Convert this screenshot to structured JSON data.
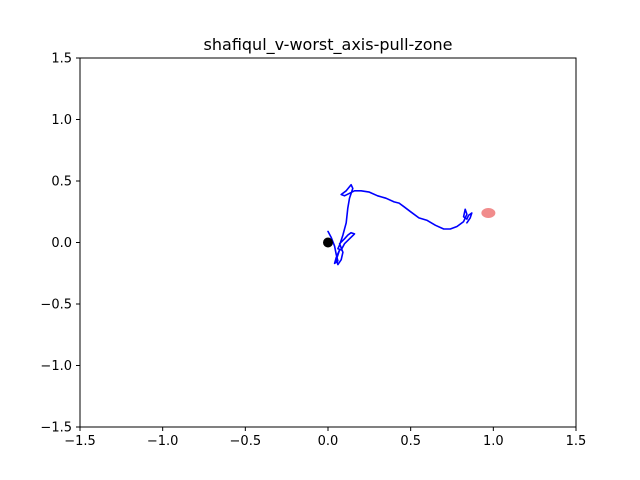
{
  "chart_data": {
    "type": "line",
    "title": "shafiqul_v-worst_axis-pull-zone",
    "xlabel": "",
    "ylabel": "",
    "xlim": [
      -1.5,
      1.5
    ],
    "ylim": [
      -1.5,
      1.5
    ],
    "xticks": [
      -1.5,
      -1.0,
      -0.5,
      0.0,
      0.5,
      1.0,
      1.5
    ],
    "yticks": [
      -1.5,
      -1.0,
      -0.5,
      0.0,
      0.5,
      1.0,
      1.5
    ],
    "xtick_labels": [
      "−1.5",
      "−1.0",
      "−0.5",
      "0.0",
      "0.5",
      "1.0",
      "1.5"
    ],
    "ytick_labels": [
      "−1.5",
      "−1.0",
      "−0.5",
      "0.0",
      "0.5",
      "1.0",
      "1.5"
    ],
    "grid": false,
    "colors": {
      "path": "#0000ff",
      "start": "#000000",
      "goal": "#f08080"
    },
    "series": [
      {
        "x": [
          0.0,
          0.02,
          0.04,
          0.05,
          0.06,
          0.04,
          0.05,
          0.07,
          0.05,
          0.06,
          0.08,
          0.09,
          0.07,
          0.1,
          0.12,
          0.14,
          0.16,
          0.13,
          0.1,
          0.08,
          0.06,
          0.07,
          0.09,
          0.11,
          0.12,
          0.13,
          0.15,
          0.14,
          0.11,
          0.08,
          0.1,
          0.13,
          0.16,
          0.2,
          0.25,
          0.3,
          0.35,
          0.4,
          0.43,
          0.46,
          0.5,
          0.55,
          0.6,
          0.65,
          0.7,
          0.74,
          0.78,
          0.82,
          0.84,
          0.83,
          0.82,
          0.84,
          0.85,
          0.87,
          0.86,
          0.84
        ],
        "y": [
          0.09,
          0.04,
          -0.03,
          -0.1,
          -0.15,
          -0.17,
          -0.12,
          -0.06,
          -0.14,
          -0.18,
          -0.14,
          -0.08,
          -0.01,
          0.03,
          0.06,
          0.08,
          0.07,
          0.03,
          -0.01,
          -0.06,
          -0.05,
          -0.02,
          0.06,
          0.16,
          0.28,
          0.36,
          0.44,
          0.47,
          0.42,
          0.39,
          0.38,
          0.4,
          0.42,
          0.42,
          0.41,
          0.38,
          0.36,
          0.33,
          0.32,
          0.29,
          0.25,
          0.2,
          0.18,
          0.14,
          0.11,
          0.11,
          0.13,
          0.17,
          0.23,
          0.27,
          0.21,
          0.19,
          0.22,
          0.24,
          0.2,
          0.16
        ]
      }
    ],
    "markers": {
      "start": {
        "x": 0.0,
        "y": 0.0
      },
      "goal": {
        "x": 0.97,
        "y": 0.24
      }
    }
  }
}
